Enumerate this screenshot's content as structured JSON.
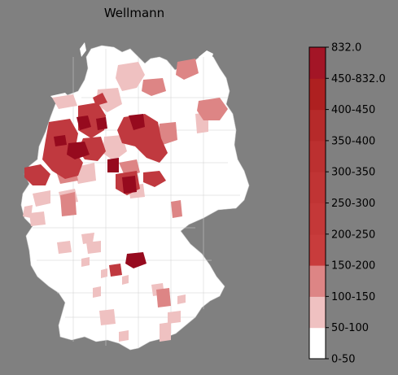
{
  "title": "Wellmann",
  "legend": {
    "labels": [
      "0-50",
      "50-100",
      "100-150",
      "150-200",
      "200-250",
      "250-300",
      "300-350",
      "350-400",
      "400-450",
      "450-832.0",
      "832.0"
    ],
    "bins": [
      {
        "color": "#ffffff"
      },
      {
        "color": "#efc1c1"
      },
      {
        "color": "#dd8585"
      },
      {
        "color": "#c83c3c"
      },
      {
        "color": "#c43838"
      },
      {
        "color": "#c03434"
      },
      {
        "color": "#bc3030"
      },
      {
        "color": "#b62a2a"
      },
      {
        "color": "#ae2020"
      },
      {
        "color": "#a31526"
      },
      {
        "color": "#960a1e"
      }
    ]
  },
  "colors": {
    "background": "#808080",
    "land": "#ffffff",
    "border": "#c8c8c8"
  }
}
